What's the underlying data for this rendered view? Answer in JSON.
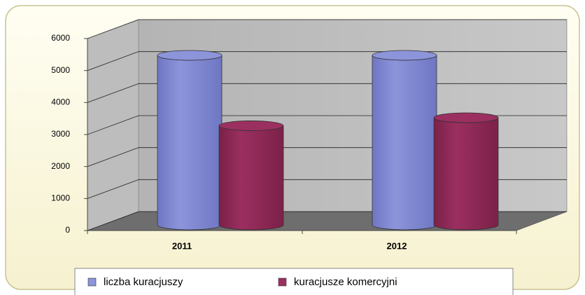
{
  "chart_data": {
    "type": "bar3d",
    "categories": [
      "2011",
      "2012"
    ],
    "series": [
      {
        "name": "liczba kuracjuszy",
        "color": "#8c94da",
        "values": [
          5300,
          5300
        ]
      },
      {
        "name": "kuracjusze komercyjni",
        "color": "#9b2f60",
        "values": [
          3100,
          3350
        ]
      }
    ],
    "ylim": [
      0,
      6000
    ],
    "yticks": [
      0,
      1000,
      2000,
      3000,
      4000,
      5000,
      6000
    ],
    "grid": true,
    "legend": "bottom"
  }
}
